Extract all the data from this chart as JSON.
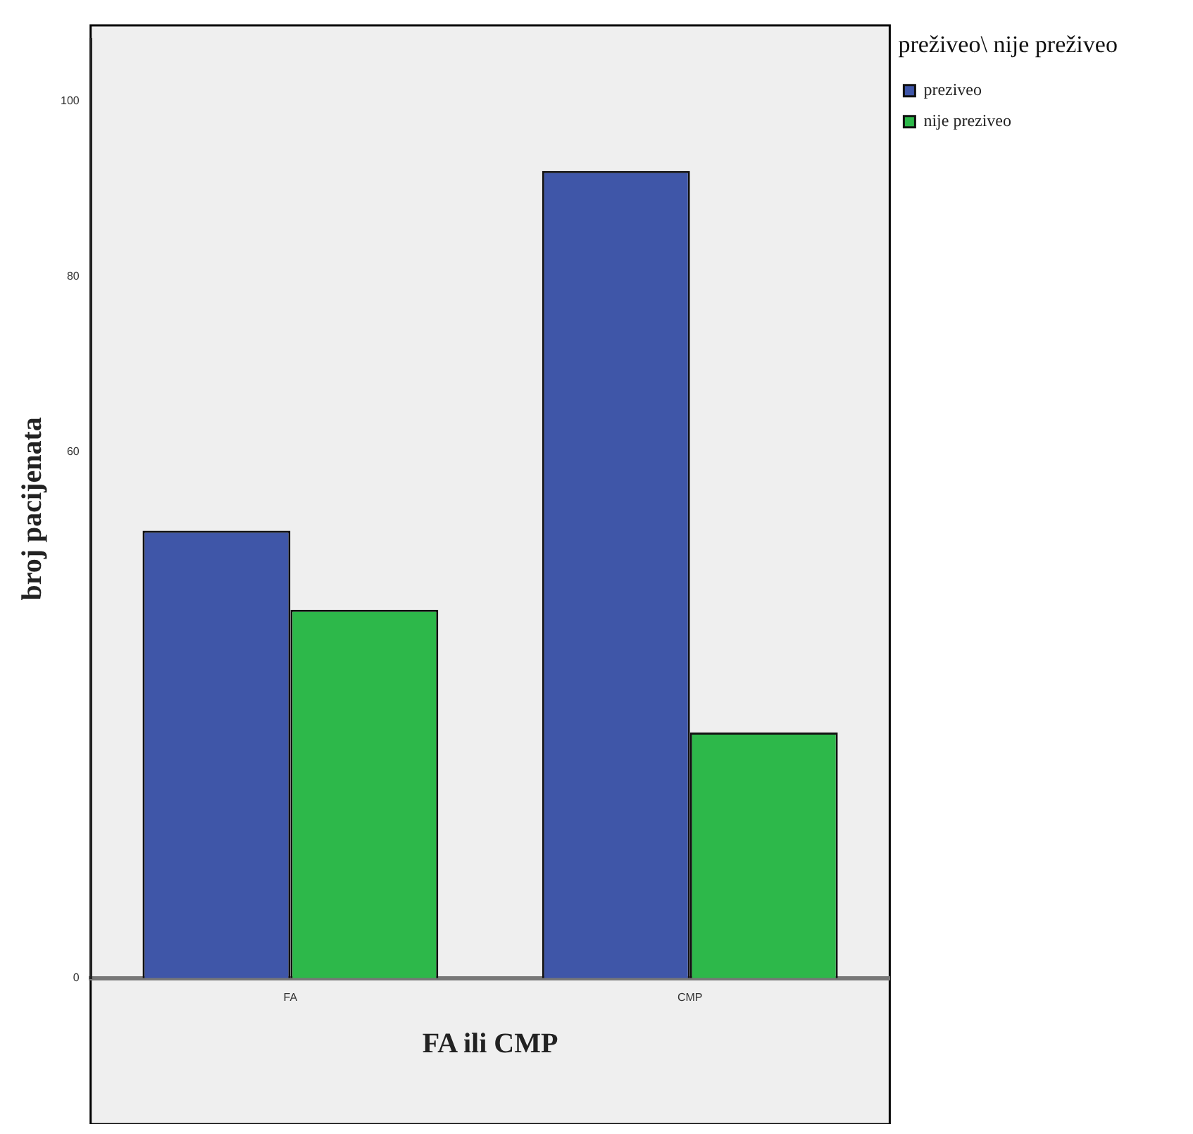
{
  "chart_data": {
    "type": "bar",
    "xlabel": "FA ili CMP",
    "ylabel": "broj pacijenata",
    "legend_title": "preživeo\\ nije preživeo",
    "categories": [
      "FA",
      "CMP"
    ],
    "series": [
      {
        "name": "preziveo",
        "color": "#3f56a8",
        "values": [
          51,
          92
        ]
      },
      {
        "name": "nije preziveo",
        "color": "#2db84a",
        "values": [
          42,
          28
        ]
      }
    ],
    "ylim": [
      0,
      107
    ],
    "yticks": [
      0,
      60,
      80,
      100
    ],
    "legend": "top right",
    "grid": false
  }
}
